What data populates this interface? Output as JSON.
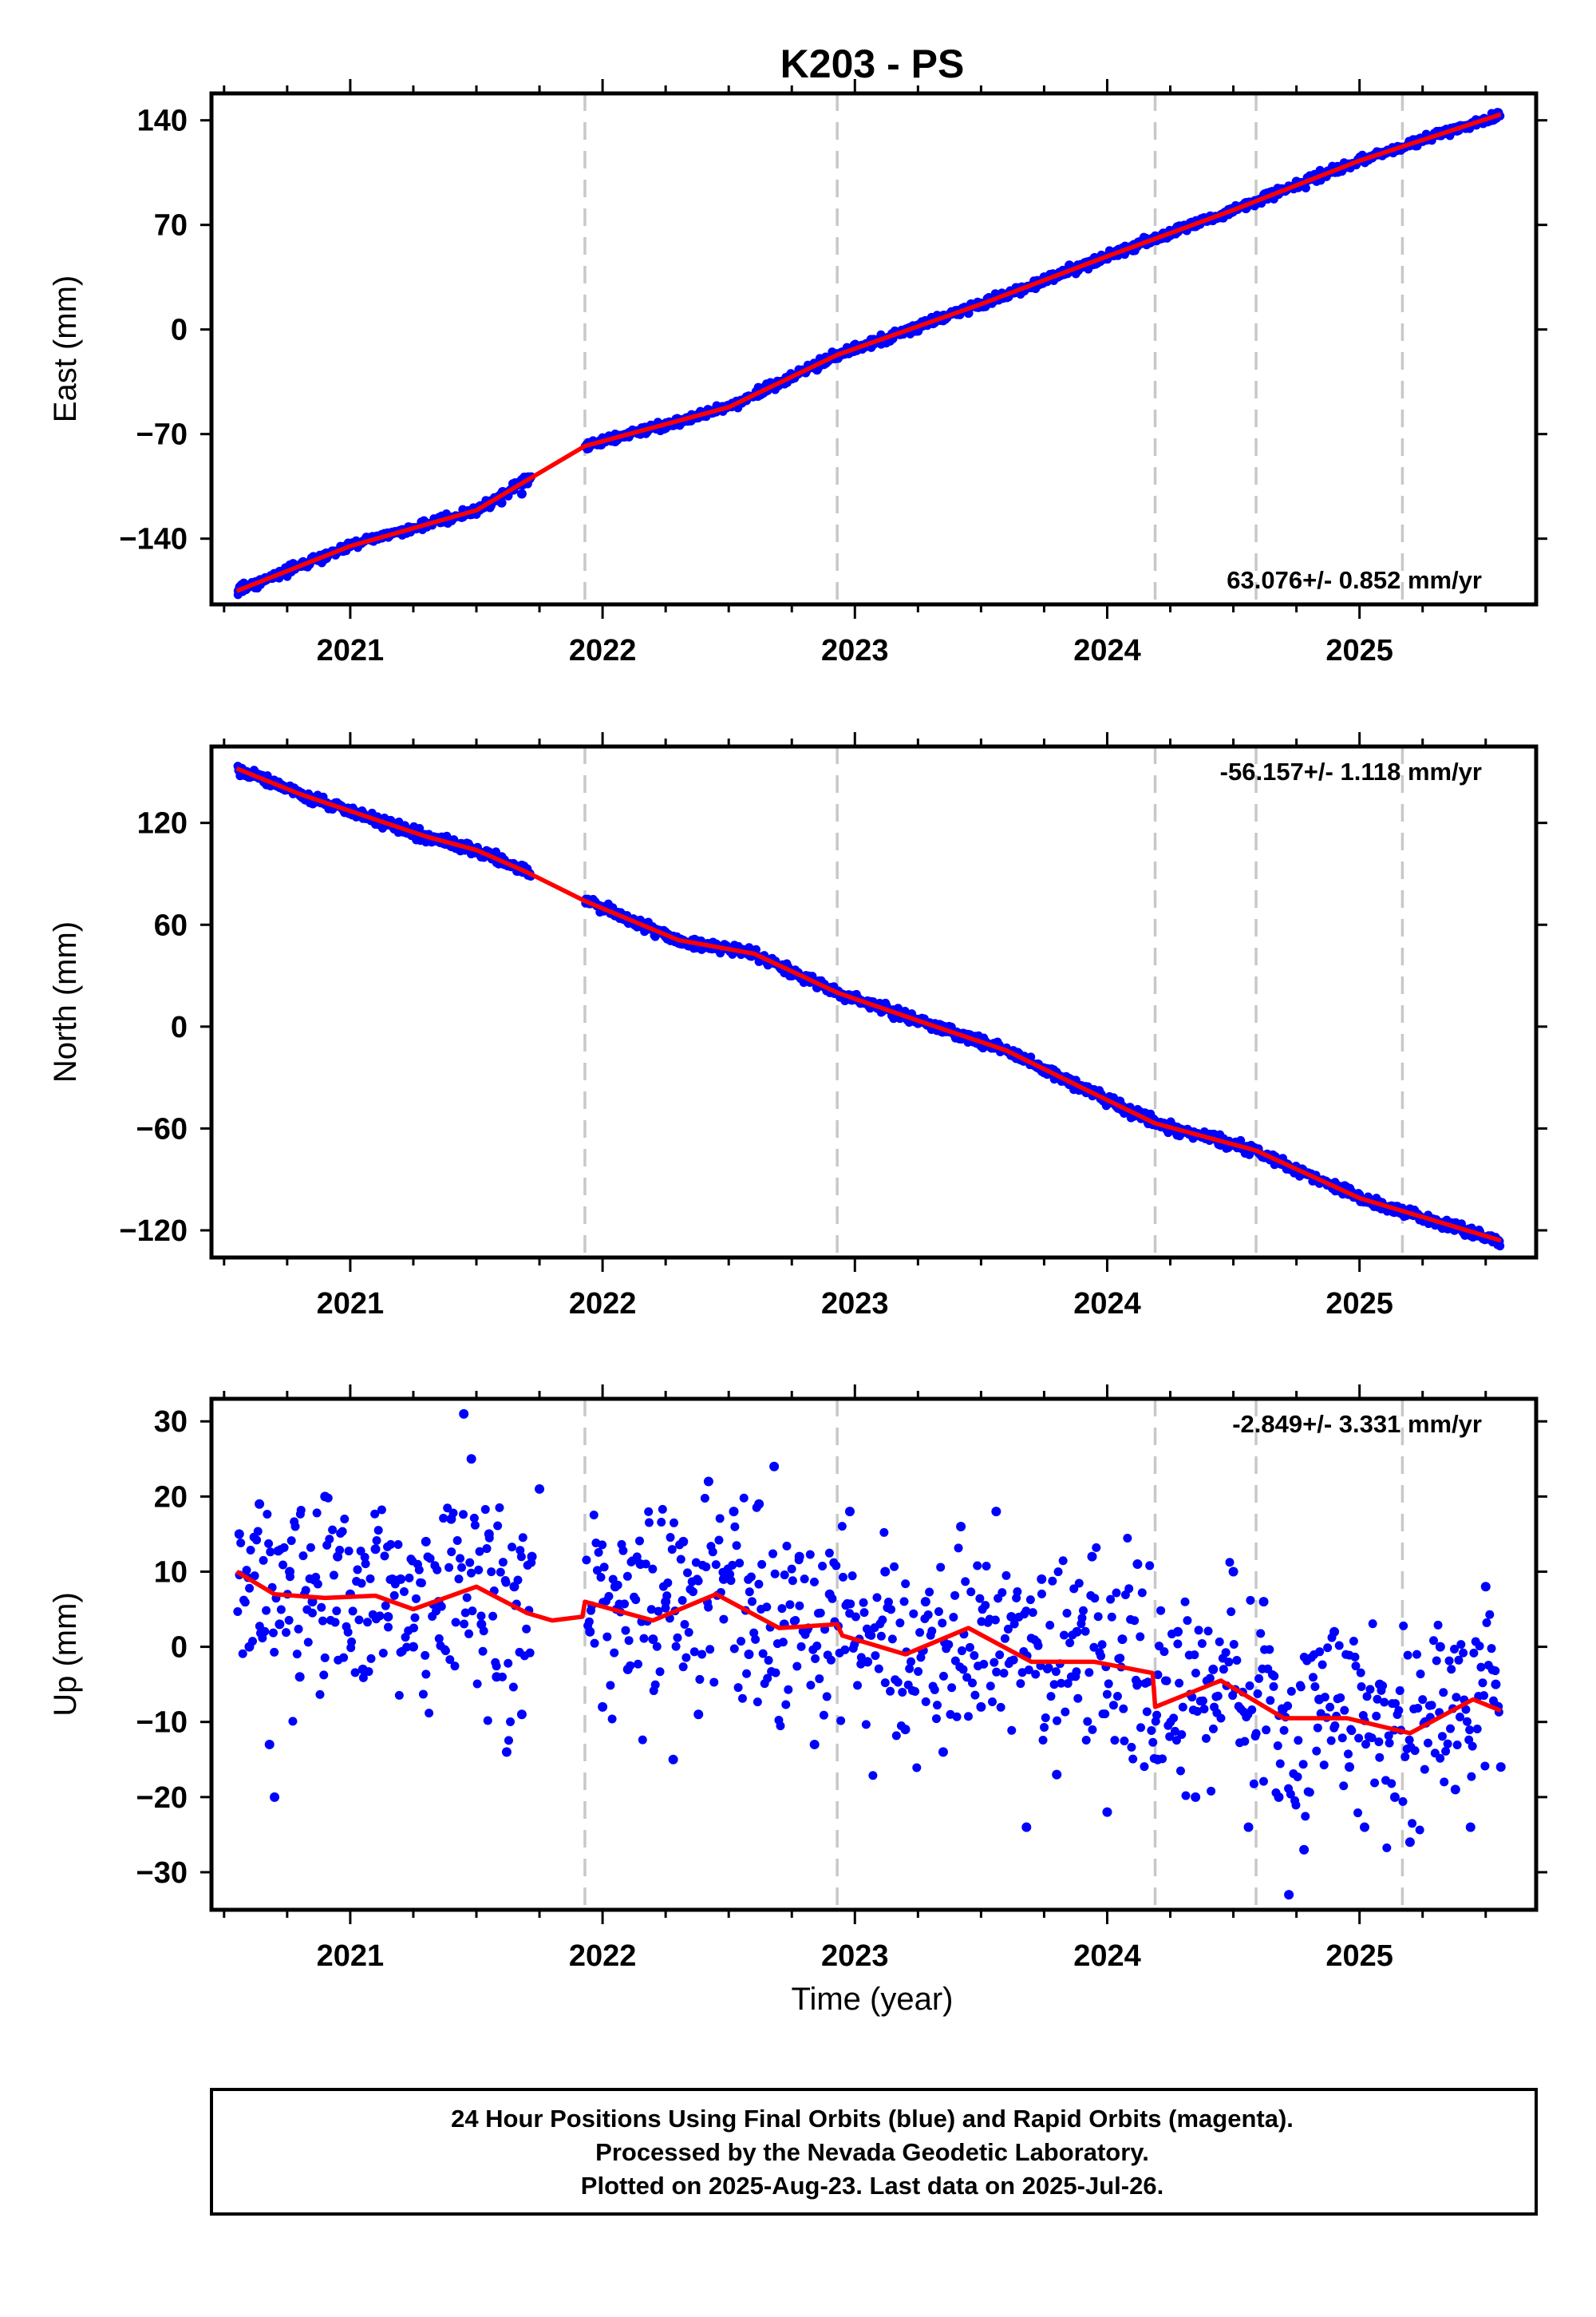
{
  "title": "K203 - PS",
  "xlabel": "Time (year)",
  "footer": {
    "line1": "24 Hour Positions Using Final Orbits (blue) and Rapid Orbits (magenta).",
    "line2": "Processed by the Nevada Geodetic Laboratory.",
    "line3": "Plotted on 2025-Aug-23. Last data on 2025-Jul-26."
  },
  "colors": {
    "points": "#0000ff",
    "fit": "#ff0000",
    "event_lines": "#c8c8c8",
    "frame": "#000000"
  },
  "chart_data": [
    {
      "type": "scatter",
      "component": "east",
      "ylabel": "East (mm)",
      "rate": "63.076+/- 0.852 mm/yr",
      "rate_position": "bottom-right",
      "xlim": [
        2020.45,
        2025.7
      ],
      "ylim": [
        -184,
        158
      ],
      "yticks": [
        -140,
        -70,
        0,
        70,
        140
      ],
      "ytick_labels": [
        "−140",
        "−70",
        "0",
        "70",
        "140"
      ],
      "xticks": [
        2021,
        2022,
        2023,
        2024,
        2025
      ],
      "xtick_labels": [
        "2021",
        "2022",
        "2023",
        "2024",
        "2025"
      ],
      "events": [
        2021.93,
        2022.93,
        2024.19,
        2024.59,
        2025.17
      ],
      "fit": {
        "x": [
          2020.55,
          2021.0,
          2021.5,
          2021.93,
          2022.5,
          2022.93,
          2023.5,
          2024.0,
          2024.5,
          2025.0,
          2025.56
        ],
        "y": [
          -175,
          -145,
          -121,
          -78,
          -52,
          -17,
          17,
          49,
          80,
          113,
          144
        ]
      },
      "series": [
        {
          "values": [
            [
              2020.57,
              -171
            ],
            [
              2020.64,
              -168
            ],
            [
              2020.72,
              -162
            ],
            [
              2020.81,
              -156
            ],
            [
              2020.9,
              -151
            ],
            [
              2021.0,
              -145
            ],
            [
              2021.1,
              -140
            ],
            [
              2021.2,
              -136
            ],
            [
              2021.3,
              -131
            ],
            [
              2021.4,
              -127
            ],
            [
              2021.5,
              -122
            ],
            [
              2021.6,
              -116
            ],
            [
              2021.68,
              -110
            ],
            [
              2021.95,
              -78
            ],
            [
              2022.05,
              -75
            ],
            [
              2022.15,
              -70
            ],
            [
              2022.25,
              -66
            ],
            [
              2022.35,
              -61
            ],
            [
              2022.45,
              -55
            ],
            [
              2022.55,
              -48
            ],
            [
              2022.65,
              -41
            ],
            [
              2022.75,
              -33
            ],
            [
              2022.85,
              -27
            ],
            [
              2022.95,
              -16
            ],
            [
              2023.05,
              -11
            ],
            [
              2023.15,
              -6
            ],
            [
              2023.25,
              -1
            ],
            [
              2023.35,
              6
            ],
            [
              2023.45,
              11
            ],
            [
              2023.55,
              19
            ],
            [
              2023.65,
              27
            ],
            [
              2023.75,
              35
            ],
            [
              2023.85,
              43
            ],
            [
              2023.95,
              48
            ],
            [
              2024.05,
              53
            ],
            [
              2024.15,
              58
            ],
            [
              2024.25,
              63
            ],
            [
              2024.35,
              69
            ],
            [
              2024.45,
              75
            ],
            [
              2024.55,
              81
            ],
            [
              2024.65,
              90
            ],
            [
              2024.75,
              99
            ],
            [
              2024.85,
              104
            ],
            [
              2024.95,
              109
            ],
            [
              2025.05,
              115
            ],
            [
              2025.15,
              120
            ],
            [
              2025.25,
              126
            ],
            [
              2025.35,
              131
            ],
            [
              2025.45,
              137
            ],
            [
              2025.55,
              144
            ]
          ]
        }
      ]
    },
    {
      "type": "scatter",
      "component": "north",
      "ylabel": "North (mm)",
      "rate": "-56.157+/- 1.118 mm/yr",
      "rate_position": "top-right",
      "xlim": [
        2020.45,
        2025.7
      ],
      "ylim": [
        -136,
        165
      ],
      "yticks": [
        -120,
        -60,
        0,
        60,
        120
      ],
      "ytick_labels": [
        "−120",
        "−60",
        "0",
        "60",
        "120"
      ],
      "xticks": [
        2021,
        2022,
        2023,
        2024,
        2025
      ],
      "xtick_labels": [
        "2021",
        "2022",
        "2023",
        "2024",
        "2025"
      ],
      "events": [
        2021.93,
        2022.93,
        2024.19,
        2024.59,
        2025.17
      ],
      "fit": {
        "x": [
          2020.55,
          2020.8,
          2021.0,
          2021.3,
          2021.5,
          2021.7,
          2021.93,
          2022.3,
          2022.6,
          2022.93,
          2023.3,
          2023.6,
          2023.9,
          2024.19,
          2024.59,
          2025.0,
          2025.56
        ],
        "y": [
          152,
          137,
          127,
          112,
          104,
          91,
          74,
          51,
          43,
          20,
          1,
          -14,
          -36,
          -57,
          -73,
          -101,
          -126
        ]
      },
      "series": [
        {
          "values": [
            [
              2020.57,
              152
            ],
            [
              2020.64,
              148
            ],
            [
              2020.72,
              141
            ],
            [
              2020.81,
              135
            ],
            [
              2020.9,
              131
            ],
            [
              2021.0,
              127
            ],
            [
              2021.1,
              121
            ],
            [
              2021.2,
              115
            ],
            [
              2021.3,
              111
            ],
            [
              2021.4,
              107
            ],
            [
              2021.5,
              104
            ],
            [
              2021.6,
              100
            ],
            [
              2021.68,
              95
            ],
            [
              2021.95,
              73
            ],
            [
              2022.05,
              66
            ],
            [
              2022.15,
              61
            ],
            [
              2022.25,
              53
            ],
            [
              2022.35,
              48
            ],
            [
              2022.45,
              46
            ],
            [
              2022.55,
              45
            ],
            [
              2022.65,
              38
            ],
            [
              2022.75,
              30
            ],
            [
              2022.85,
              23
            ],
            [
              2022.95,
              19
            ],
            [
              2023.05,
              15
            ],
            [
              2023.15,
              7
            ],
            [
              2023.25,
              2
            ],
            [
              2023.35,
              -1
            ],
            [
              2023.45,
              -6
            ],
            [
              2023.55,
              -10
            ],
            [
              2023.65,
              -16
            ],
            [
              2023.75,
              -27
            ],
            [
              2023.85,
              -34
            ],
            [
              2023.95,
              -39
            ],
            [
              2024.05,
              -44
            ],
            [
              2024.15,
              -51
            ],
            [
              2024.25,
              -59
            ],
            [
              2024.35,
              -63
            ],
            [
              2024.45,
              -67
            ],
            [
              2024.55,
              -71
            ],
            [
              2024.65,
              -77
            ],
            [
              2024.75,
              -86
            ],
            [
              2024.85,
              -91
            ],
            [
              2024.95,
              -98
            ],
            [
              2025.05,
              -103
            ],
            [
              2025.15,
              -108
            ],
            [
              2025.25,
              -114
            ],
            [
              2025.35,
              -119
            ],
            [
              2025.45,
              -123
            ],
            [
              2025.55,
              -126
            ]
          ]
        }
      ]
    },
    {
      "type": "scatter",
      "component": "up",
      "ylabel": "Up (mm)",
      "rate": "-2.849+/- 3.331 mm/yr",
      "rate_position": "top-right",
      "xlim": [
        2020.45,
        2025.7
      ],
      "ylim": [
        -35,
        33
      ],
      "yticks": [
        -30,
        -20,
        -10,
        0,
        10,
        20,
        30
      ],
      "ytick_labels": [
        "−30",
        "−20",
        "−10",
        "0",
        "10",
        "20",
        "30"
      ],
      "xticks": [
        2021,
        2022,
        2023,
        2024,
        2025
      ],
      "xtick_labels": [
        "2021",
        "2022",
        "2023",
        "2024",
        "2025"
      ],
      "events": [
        2021.93,
        2022.93,
        2024.19,
        2024.59,
        2025.17
      ],
      "fit": {
        "x": [
          2020.55,
          2020.7,
          2020.9,
          2021.1,
          2021.25,
          2021.5,
          2021.7,
          2021.8,
          2021.92,
          2021.93,
          2022.2,
          2022.45,
          2022.7,
          2022.93,
          2022.95,
          2023.2,
          2023.45,
          2023.7,
          2023.95,
          2024.18,
          2024.19,
          2024.45,
          2024.7,
          2024.95,
          2025.2,
          2025.45,
          2025.56
        ],
        "y": [
          10,
          7,
          6.5,
          6.8,
          5,
          8,
          4.5,
          3.5,
          4,
          6,
          3.5,
          7,
          2.5,
          3,
          1.5,
          -1,
          2.5,
          -2,
          -2,
          -3.5,
          -8,
          -4.5,
          -9.5,
          -9.5,
          -11.5,
          -7,
          -8.5
        ]
      },
      "series": [
        {
          "values": [
            [
              2020.56,
              15
            ],
            [
              2020.6,
              0
            ],
            [
              2020.64,
              19
            ],
            [
              2020.68,
              -13
            ],
            [
              2020.7,
              -20
            ],
            [
              2020.72,
              3
            ],
            [
              2020.76,
              10
            ],
            [
              2020.8,
              -4
            ],
            [
              2020.85,
              6
            ],
            [
              2020.9,
              20
            ],
            [
              2020.95,
              12
            ],
            [
              2021.0,
              7
            ],
            [
              2021.05,
              -3
            ],
            [
              2021.1,
              13
            ],
            [
              2021.15,
              4
            ],
            [
              2021.2,
              9
            ],
            [
              2021.25,
              0
            ],
            [
              2021.3,
              14
            ],
            [
              2021.35,
              6
            ],
            [
              2021.4,
              17
            ],
            [
              2021.45,
              31
            ],
            [
              2021.48,
              25
            ],
            [
              2021.52,
              3
            ],
            [
              2021.55,
              15
            ],
            [
              2021.58,
              -4
            ],
            [
              2021.62,
              -14
            ],
            [
              2021.65,
              8
            ],
            [
              2021.68,
              -9
            ],
            [
              2021.72,
              12
            ],
            [
              2021.75,
              21
            ],
            [
              2021.95,
              2
            ],
            [
              2022.0,
              -8
            ],
            [
              2022.05,
              8
            ],
            [
              2022.1,
              -3
            ],
            [
              2022.15,
              11
            ],
            [
              2022.2,
              1
            ],
            [
              2022.25,
              6
            ],
            [
              2022.28,
              -15
            ],
            [
              2022.32,
              14
            ],
            [
              2022.38,
              -9
            ],
            [
              2022.42,
              22
            ],
            [
              2022.48,
              9
            ],
            [
              2022.52,
              18
            ],
            [
              2022.58,
              -1
            ],
            [
              2022.62,
              19
            ],
            [
              2022.68,
              24
            ],
            [
              2022.72,
              3
            ],
            [
              2022.78,
              12
            ],
            [
              2022.84,
              -13
            ],
            [
              2022.9,
              7
            ],
            [
              2022.98,
              18
            ],
            [
              2023.05,
              -2
            ],
            [
              2023.12,
              10
            ],
            [
              2023.2,
              -11
            ],
            [
              2023.28,
              6
            ],
            [
              2023.35,
              -14
            ],
            [
              2023.42,
              16
            ],
            [
              2023.5,
              -8
            ],
            [
              2023.56,
              18
            ],
            [
              2023.62,
              4
            ],
            [
              2023.68,
              -24
            ],
            [
              2023.74,
              9
            ],
            [
              2023.8,
              -17
            ],
            [
              2023.88,
              2
            ],
            [
              2023.94,
              12
            ],
            [
              2024.0,
              -22
            ],
            [
              2024.06,
              1
            ],
            [
              2024.12,
              11
            ],
            [
              2024.2,
              -15
            ],
            [
              2024.28,
              2
            ],
            [
              2024.35,
              -20
            ],
            [
              2024.42,
              -3
            ],
            [
              2024.5,
              10
            ],
            [
              2024.56,
              -24
            ],
            [
              2024.62,
              6
            ],
            [
              2024.68,
              -20
            ],
            [
              2024.72,
              -33
            ],
            [
              2024.78,
              -27
            ],
            [
              2024.84,
              -7
            ],
            [
              2024.9,
              2
            ],
            [
              2024.96,
              -16
            ],
            [
              2025.02,
              -24
            ],
            [
              2025.08,
              -5
            ],
            [
              2025.14,
              -20
            ],
            [
              2025.2,
              -26
            ],
            [
              2025.26,
              -10
            ],
            [
              2025.32,
              0
            ],
            [
              2025.38,
              -19
            ],
            [
              2025.44,
              -24
            ],
            [
              2025.5,
              8
            ],
            [
              2025.54,
              -5
            ],
            [
              2025.56,
              -16
            ]
          ]
        }
      ]
    }
  ]
}
